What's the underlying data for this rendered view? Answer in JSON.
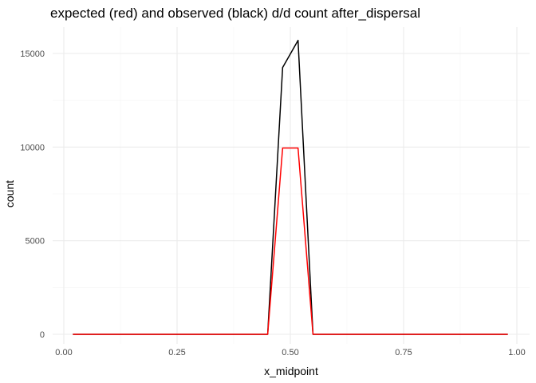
{
  "chart_data": {
    "type": "line",
    "title": "expected (red) and observed (black) d/d count after_dispersal",
    "xlabel": "x_midpoint",
    "ylabel": "count",
    "xlim": [
      0,
      1
    ],
    "ylim": [
      0,
      16000
    ],
    "x_ticks": [
      0.0,
      0.25,
      0.5,
      0.75,
      1.0
    ],
    "x_tick_labels": [
      "0.00",
      "0.25",
      "0.50",
      "0.75",
      "1.00"
    ],
    "y_ticks": [
      0,
      5000,
      10000,
      15000
    ],
    "y_tick_labels": [
      "0",
      "5000",
      "10000",
      "15000"
    ],
    "grid": true,
    "legend": "none",
    "series": [
      {
        "color": "#000000",
        "x": [
          0.02,
          0.06,
          0.1,
          0.14,
          0.18,
          0.22,
          0.26,
          0.3,
          0.34,
          0.38,
          0.42,
          0.45,
          0.483,
          0.517,
          0.55,
          0.58,
          0.62,
          0.66,
          0.7,
          0.74,
          0.78,
          0.82,
          0.86,
          0.9,
          0.94,
          0.98
        ],
        "y": [
          0,
          0,
          0,
          0,
          0,
          0,
          0,
          0,
          0,
          0,
          0,
          0,
          14250,
          15700,
          0,
          0,
          0,
          0,
          0,
          0,
          0,
          0,
          0,
          0,
          0,
          0
        ]
      },
      {
        "color": "#ff0000",
        "x": [
          0.02,
          0.06,
          0.1,
          0.14,
          0.18,
          0.22,
          0.26,
          0.3,
          0.34,
          0.38,
          0.42,
          0.45,
          0.483,
          0.517,
          0.55,
          0.58,
          0.62,
          0.66,
          0.7,
          0.74,
          0.78,
          0.82,
          0.86,
          0.9,
          0.94,
          0.98
        ],
        "y": [
          0,
          0,
          0,
          0,
          0,
          0,
          0,
          0,
          0,
          0,
          0,
          0,
          9950,
          9950,
          0,
          0,
          0,
          0,
          0,
          0,
          0,
          0,
          0,
          0,
          0,
          0
        ]
      }
    ]
  }
}
